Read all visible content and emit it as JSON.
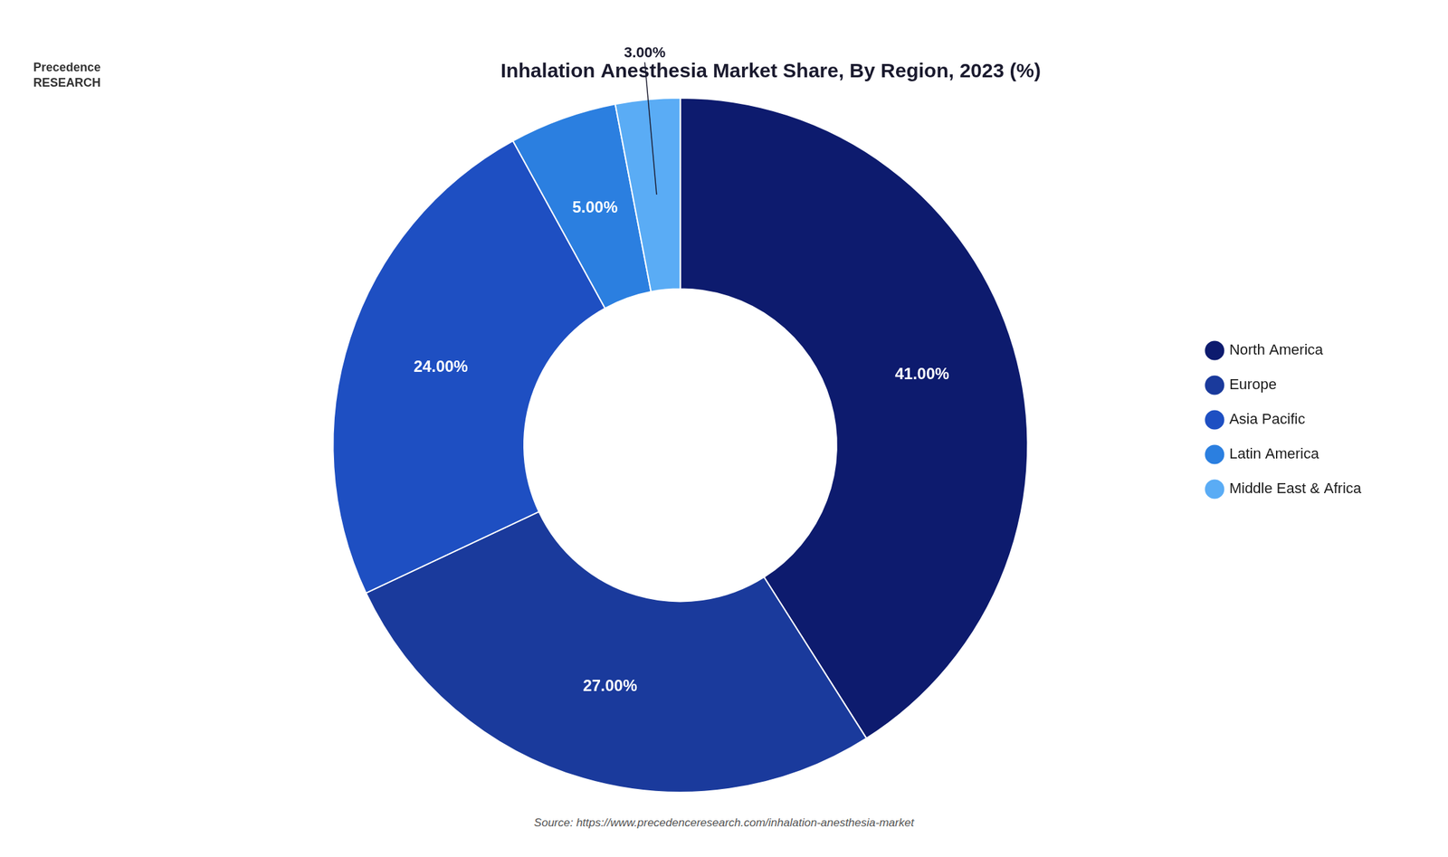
{
  "chart_data": {
    "type": "doughnut",
    "title": "Inhalation Anesthesia Market Share, By Region, 2023 (%)",
    "categories": [
      "North America",
      "Europe",
      "Asia Pacific",
      "Latin America",
      "Middle East & Africa"
    ],
    "values": [
      41.0,
      27.0,
      24.0,
      5.0,
      3.0
    ],
    "value_labels": [
      "41.00%",
      "27.00%",
      "24.00%",
      "5.00%",
      "3.00%"
    ],
    "colors": [
      "#0d1b6e",
      "#1a3a9c",
      "#1e4fc2",
      "#2b7fe0",
      "#5aacf5"
    ],
    "data_labels": true,
    "legend": "right",
    "annotations": [
      "Source: https://www.precedenceresearch.com/inhalation-anesthesia-market",
      "Precedence\nRESEARCH"
    ]
  }
}
